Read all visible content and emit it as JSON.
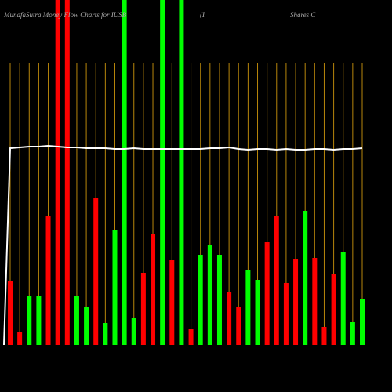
{
  "chart_data": {
    "type": "bar",
    "title": "MunafaSutra  Money Flow  Charts for IUSB",
    "title_part2": "(I",
    "title_part3": "Shares C",
    "ylim": [
      0,
      440
    ],
    "values": [
      82,
      17,
      62,
      62,
      165,
      440,
      440,
      62,
      48,
      188,
      28,
      147,
      440,
      34,
      92,
      142,
      440,
      108,
      440,
      20,
      115,
      128,
      115,
      67,
      49,
      96,
      83,
      131,
      165,
      79,
      110,
      171,
      111,
      23,
      91,
      118,
      29,
      59
    ],
    "colors": [
      "#ff0000",
      "#ff0000",
      "#00ff00",
      "#00ff00",
      "#ff0000",
      "#ff0000",
      "#ff0000",
      "#00ff00",
      "#00ff00",
      "#ff0000",
      "#00ff00",
      "#00ff00",
      "#00ff00",
      "#00ff00",
      "#ff0000",
      "#ff0000",
      "#00ff00",
      "#ff0000",
      "#00ff00",
      "#ff0000",
      "#00ff00",
      "#00ff00",
      "#00ff00",
      "#ff0000",
      "#ff0000",
      "#00ff00",
      "#00ff00",
      "#ff0000",
      "#ff0000",
      "#ff0000",
      "#ff0000",
      "#00ff00",
      "#ff0000",
      "#ff0000",
      "#ff0000",
      "#00ff00",
      "#00ff00",
      "#00ff00"
    ],
    "line": {
      "color": "#ffffff",
      "values": [
        251,
        252,
        253,
        253,
        254,
        253,
        252,
        252,
        251,
        251,
        251,
        250,
        250,
        251,
        250,
        250,
        250,
        250,
        250,
        250,
        250,
        251,
        251,
        252,
        250,
        249,
        250,
        250,
        249,
        250,
        249,
        249,
        250,
        250,
        249,
        250,
        250,
        251
      ]
    },
    "gridline_color": "#b8860b"
  }
}
